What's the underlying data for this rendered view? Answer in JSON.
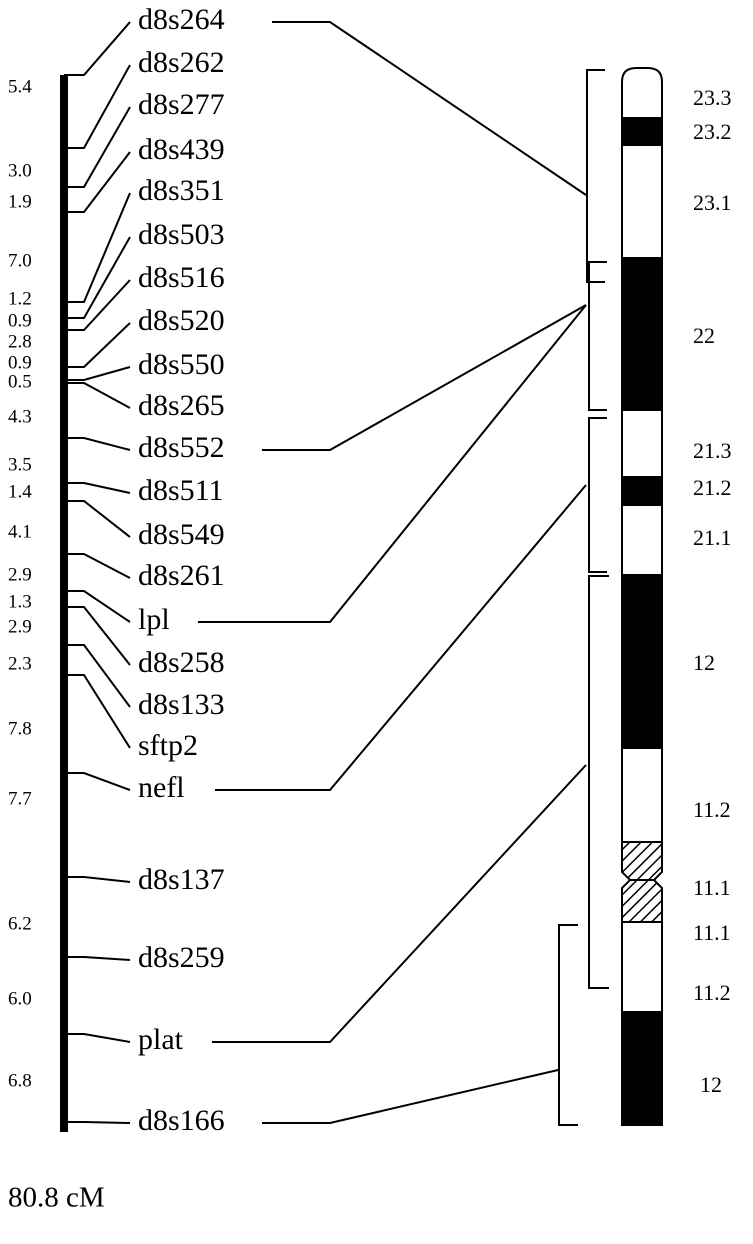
{
  "markers": [
    {
      "name": "d8s264"
    },
    {
      "name": "d8s262"
    },
    {
      "name": "d8s277"
    },
    {
      "name": "d8s439"
    },
    {
      "name": "d8s351"
    },
    {
      "name": "d8s503"
    },
    {
      "name": "d8s516"
    },
    {
      "name": "d8s520"
    },
    {
      "name": "d8s550"
    },
    {
      "name": "d8s265"
    },
    {
      "name": "d8s552"
    },
    {
      "name": "d8s511"
    },
    {
      "name": "d8s549"
    },
    {
      "name": "d8s261"
    },
    {
      "name": "lpl"
    },
    {
      "name": "d8s258"
    },
    {
      "name": "d8s133"
    },
    {
      "name": "sftp2"
    },
    {
      "name": "nefl"
    },
    {
      "name": "d8s137"
    },
    {
      "name": "d8s259"
    },
    {
      "name": "plat"
    },
    {
      "name": "d8s166"
    }
  ],
  "intervals": [
    "5.4",
    "3.0",
    "1.9",
    "7.0",
    "1.2",
    "0.9",
    "2.8",
    "0.9",
    "0.5",
    "4.3",
    "3.5",
    "1.4",
    "4.1",
    "2.9",
    "1.3",
    "2.9",
    "2.3",
    "7.8",
    "7.7",
    "6.2",
    "6.0",
    "6.8"
  ],
  "bands": [
    {
      "label": "23.3"
    },
    {
      "label": "23.2"
    },
    {
      "label": "23.1"
    },
    {
      "label": "22"
    },
    {
      "label": "21.3"
    },
    {
      "label": "21.2"
    },
    {
      "label": "21.1"
    },
    {
      "label": "12"
    },
    {
      "label": "11.2"
    },
    {
      "label": "11.1"
    },
    {
      "label": "11.1"
    },
    {
      "label": "11.2"
    },
    {
      "label": "12"
    }
  ],
  "total": "80.8 cM"
}
